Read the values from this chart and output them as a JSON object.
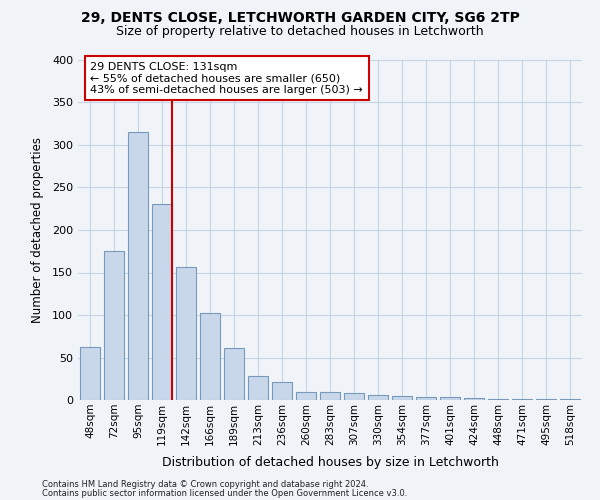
{
  "title1": "29, DENTS CLOSE, LETCHWORTH GARDEN CITY, SG6 2TP",
  "title2": "Size of property relative to detached houses in Letchworth",
  "xlabel": "Distribution of detached houses by size in Letchworth",
  "ylabel": "Number of detached properties",
  "footnote1": "Contains HM Land Registry data © Crown copyright and database right 2024.",
  "footnote2": "Contains public sector information licensed under the Open Government Licence v3.0.",
  "categories": [
    "48sqm",
    "72sqm",
    "95sqm",
    "119sqm",
    "142sqm",
    "166sqm",
    "189sqm",
    "213sqm",
    "236sqm",
    "260sqm",
    "283sqm",
    "307sqm",
    "330sqm",
    "354sqm",
    "377sqm",
    "401sqm",
    "424sqm",
    "448sqm",
    "471sqm",
    "495sqm",
    "518sqm"
  ],
  "values": [
    62,
    175,
    315,
    230,
    157,
    102,
    61,
    28,
    21,
    9,
    10,
    8,
    6,
    5,
    4,
    3,
    2,
    1,
    1,
    1,
    1
  ],
  "bar_color": "#c8d8ea",
  "bar_edge_color": "#7799bb",
  "marker_color": "#cc0000",
  "annotation_line1": "29 DENTS CLOSE: 131sqm",
  "annotation_line2": "← 55% of detached houses are smaller (650)",
  "annotation_line3": "43% of semi-detached houses are larger (503) →",
  "ylim": [
    0,
    400
  ],
  "yticks": [
    0,
    50,
    100,
    150,
    200,
    250,
    300,
    350,
    400
  ],
  "grid_color": "#c5d5e5",
  "bg_color": "#f0f4f8",
  "title1_fontsize": 10,
  "title2_fontsize": 9
}
